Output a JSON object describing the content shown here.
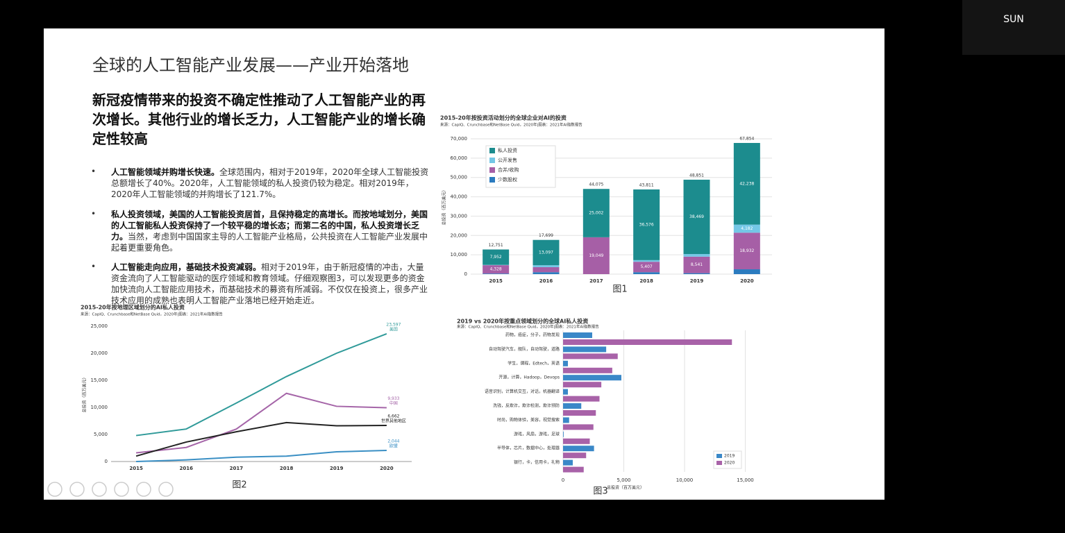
{
  "screen": {
    "user_name": "SUN"
  },
  "slide": {
    "title": "全球的人工智能产业发展——产业开始落地",
    "heading": "新冠疫情带来的投资不确定性推动了人工智能产业的再次增长。其他行业的增长乏力，人工智能产业的增长确定性较高",
    "bullets": [
      {
        "lead": "人工智能领域并购增长快速。",
        "text": "全球范围内，相对于2019年，2020年全球人工智能投资总额增长了40%。2020年，人工智能领域的私人投资仍较为稳定。相对2019年，2020年人工智能领域的并购增长了121.7%。"
      },
      {
        "lead": "私人投资领域，美国的人工智能投资居首，且保持稳定的高增长。而按地域划分，美国的人工智能私人投资保持了一个较平稳的增长态；而第二名的中国，私人投资增长乏力。",
        "text": "当然，考虑到中国国家主导的人工智能产业格局，公共投资在人工智能产业发展中起着更重要角色。"
      },
      {
        "lead": "人工智能走向应用，基础技术投资减弱。",
        "text": "相对于2019年，由于新冠疫情的冲击，大量资金流向了人工智能驱动的医疗领域和教育领域。仔细观察图3，可以发现更多的资金加快流向人工智能应用技术，而基础技术的募资有所减弱。不仅仅在投资上，很多产业技术应用的成熟也表明人工智能产业落地已经开始走近。"
      }
    ]
  },
  "chart_data": [
    {
      "type": "bar",
      "stacked": true,
      "title": "2015-20年按投资活动划分的全球企业对AI的投资",
      "source": "来源：CapIQ、Crunchbase和NetBase Quid，2020年|图表：2021年AI指数报告",
      "caption": "图1",
      "ylabel": "总投资（百万美元）",
      "categories": [
        "2015",
        "2016",
        "2017",
        "2018",
        "2019",
        "2020"
      ],
      "series": [
        {
          "name": "私人投资",
          "color": "#1c8c8e",
          "values": [
            7952,
            13097,
            25002,
            36576,
            38469,
            42238
          ],
          "value_labels": [
            "7,952",
            "13,097",
            "25,002",
            "36,576",
            "38,469",
            "42,238"
          ]
        },
        {
          "name": "公开发售",
          "color": "#74c7e6",
          "values": [
            171,
            1000,
            24,
            828,
            1341,
            4182
          ],
          "value_labels": [
            null,
            null,
            null,
            null,
            null,
            "4,182"
          ]
        },
        {
          "name": "合并/收购",
          "color": "#a65fa6",
          "values": [
            4328,
            2600,
            19049,
            5407,
            8541,
            18932
          ],
          "value_labels": [
            "4,328",
            null,
            "19,049",
            "5,407",
            "8,541",
            "18,932"
          ]
        },
        {
          "name": "少数股权",
          "color": "#2b7bbf",
          "values": [
            300,
            1002,
            0,
            1000,
            500,
            2502
          ]
        }
      ],
      "total_labels": [
        "12,751",
        "17,699",
        "44,075",
        "43,811",
        "48,851",
        "67,854"
      ],
      "ylim": [
        0,
        70000
      ],
      "yticks": [
        0,
        {
          "value": 10000,
          "label": "10,000"
        },
        {
          "value": 20000,
          "label": "20,000"
        },
        {
          "value": 30000,
          "label": "30,000"
        },
        {
          "value": 40000,
          "label": "40,000"
        },
        {
          "value": 50000,
          "label": "50,000"
        },
        {
          "value": 60000,
          "label": "60,000"
        },
        {
          "value": 70000,
          "label": "70,000"
        }
      ],
      "grid": true,
      "legend": "upper left"
    },
    {
      "type": "line",
      "title": "2015-20年按地理区域划分的AI私人投资",
      "source": "来源：CapIQ、Crunchbase和NetBase Quid，2020年|图表：2021年AI指数报告",
      "caption": "图2",
      "ylabel": "总投资（百万美元）",
      "categories": [
        "2015",
        "2016",
        "2017",
        "2018",
        "2019",
        "2020"
      ],
      "series": [
        {
          "name": "美国",
          "color": "#2f9a99",
          "values": [
            4800,
            6000,
            10800,
            15700,
            20000,
            23597
          ],
          "value_labels": [
            null,
            null,
            null,
            null,
            null,
            "23,597"
          ]
        },
        {
          "name": "中国",
          "color": "#a565a8",
          "values": [
            1600,
            2600,
            6000,
            12600,
            10200,
            9933
          ],
          "value_labels": [
            null,
            null,
            null,
            null,
            null,
            "9,933"
          ]
        },
        {
          "name": "世界其他地区",
          "color": "#222222",
          "values": [
            1000,
            3600,
            5500,
            7200,
            6600,
            6662
          ],
          "value_labels": [
            null,
            null,
            null,
            null,
            null,
            "6,662"
          ]
        },
        {
          "name": "欧盟",
          "color": "#3a8fc4",
          "values": [
            0,
            300,
            800,
            1000,
            1800,
            2044
          ],
          "value_labels": [
            null,
            null,
            null,
            null,
            null,
            "2,044"
          ]
        }
      ],
      "ylim": [
        0,
        25000
      ],
      "yticks": [
        0,
        {
          "value": 5000,
          "label": "5,000"
        },
        {
          "value": 10000,
          "label": "10,000"
        },
        {
          "value": 15000,
          "label": "15,000"
        },
        {
          "value": 20000,
          "label": "20,000"
        },
        {
          "value": 25000,
          "label": "25,000"
        }
      ],
      "grid": false
    },
    {
      "type": "bar",
      "orientation": "horizontal",
      "title": "2019 vs 2020年按重点领域划分的全球AI私人投资",
      "source": "来源：CapIQ、Crunchbase和NetBase Quid，2020年|图表：2021年AI指数报告",
      "caption": "图3",
      "xlabel": "总投资（百万美元）",
      "categories": [
        "药物，癌症，分子，药物发现",
        "自动驾驶汽车，舰队，自动驾驶，道路",
        "学生，课程，Edtech，英语",
        "开源，计算，Hadoop，Devops",
        "语音识别，计算机交互，对话，机器翻译",
        "洗钱，反欺诈，欺诈检测，欺诈预防",
        "时尚，购物体验，美容，视觉搜索",
        "游戏，风扇，游戏，足球",
        "半导体，芯片，数据中心，处理器",
        "银行，卡，信用卡，礼物"
      ],
      "series": [
        {
          "name": "2019",
          "color": "#3a88c8",
          "values": [
            2400,
            3550,
            400,
            4800,
            400,
            1500,
            500,
            50,
            2550,
            800
          ]
        },
        {
          "name": "2020",
          "color": "#a862a8",
          "values": [
            13900,
            4500,
            4050,
            3150,
            3000,
            2700,
            2500,
            2200,
            1900,
            1700
          ]
        }
      ],
      "xlim": [
        0,
        16000
      ],
      "xticks": [
        0,
        {
          "value": 5000,
          "label": "5,000"
        },
        {
          "value": 10000,
          "label": "10,000"
        },
        {
          "value": 15000,
          "label": "15,000"
        }
      ],
      "grid": true,
      "legend": "lower right"
    }
  ]
}
